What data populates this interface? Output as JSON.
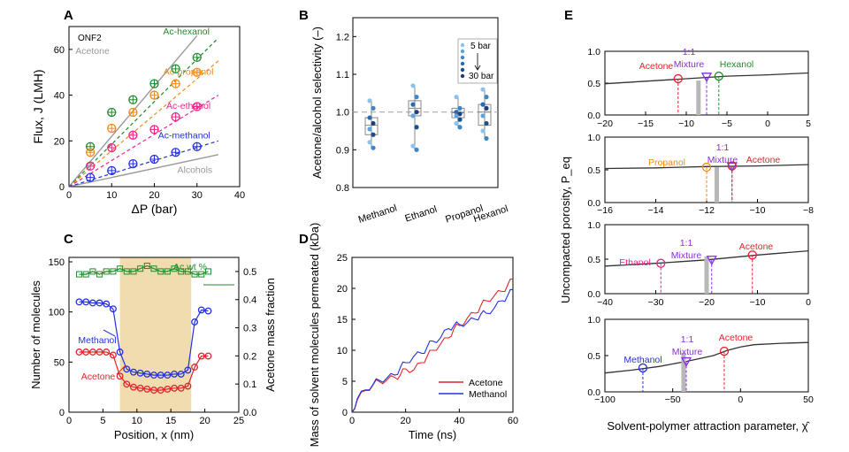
{
  "colors": {
    "acetone": "#e0242b",
    "methanol": "#2230e0",
    "ethanol": "#e8238c",
    "propanol": "#f08a1d",
    "hexanol": "#1f8a2a",
    "mixture": "#8a2be2",
    "gray": "#9a9a9a",
    "band": "#f1dcb0",
    "axis": "#000000",
    "light_blue": "#8cc3ea",
    "mid_blue": "#3f86c8",
    "dark_blue": "#1f3f7a"
  },
  "chart_data": [
    {
      "panel": "A",
      "type": "scatter",
      "xlabel": "ΔP (bar)",
      "ylabel": "Flux, J (LMH)",
      "xlim": [
        0,
        40
      ],
      "ylim": [
        0,
        70
      ],
      "xticks": [
        "0",
        "10",
        "20",
        "30",
        "40"
      ],
      "yticks": [
        "0",
        "20",
        "40",
        "60"
      ],
      "annotation": "ONF2",
      "lines": [
        {
          "name": "Acetone",
          "color_key": "gray",
          "x": [
            0,
            30
          ],
          "y": [
            0,
            66
          ]
        },
        {
          "name": "Alcohols",
          "color_key": "gray",
          "x": [
            0,
            35
          ],
          "y": [
            0,
            14
          ]
        }
      ],
      "series": [
        {
          "name": "Ac-hexanol",
          "color_key": "hexanol",
          "x": [
            5,
            10,
            15,
            20,
            25,
            30
          ],
          "y": [
            17.5,
            32.5,
            38,
            45,
            51.5,
            56.5
          ],
          "fit_end": [
            35,
            65
          ]
        },
        {
          "name": "Ac-propanol",
          "color_key": "propanol",
          "x": [
            5,
            10,
            15,
            20,
            25,
            30
          ],
          "y": [
            15,
            25.5,
            32.5,
            40,
            45,
            50
          ],
          "fit_end": [
            35,
            55
          ]
        },
        {
          "name": "Ac-ethanol",
          "color_key": "ethanol",
          "x": [
            5,
            10,
            15,
            20,
            25,
            30
          ],
          "y": [
            9,
            17,
            22.5,
            25,
            30.5,
            35
          ],
          "fit_end": [
            35,
            40
          ]
        },
        {
          "name": "Ac-methanol",
          "color_key": "methanol",
          "x": [
            5,
            10,
            15,
            20,
            25,
            30
          ],
          "y": [
            4,
            7,
            10,
            12,
            15,
            17.5
          ],
          "fit_end": [
            35,
            20
          ]
        }
      ]
    },
    {
      "panel": "B",
      "type": "box",
      "ylabel": "Acetone/alcohol selectivity (–)",
      "ylim": [
        0.8,
        1.25
      ],
      "yticks": [
        "0.8",
        "0.9",
        "1.0",
        "1.1",
        "1.2"
      ],
      "categories": [
        "Methanol",
        "Ethanol",
        "Propanol",
        "Hexanol"
      ],
      "reference": 1.0,
      "legend": {
        "top": "5 bar",
        "bottom": "30 bar"
      },
      "boxes": [
        {
          "q1": 0.94,
          "median": 0.965,
          "q3": 0.985,
          "min": 0.905,
          "max": 1.03,
          "points": [
            1.03,
            1.01,
            0.985,
            0.97,
            0.955,
            0.94,
            0.92,
            0.905
          ]
        },
        {
          "q1": 0.99,
          "median": 1.01,
          "q3": 1.03,
          "min": 0.9,
          "max": 1.07,
          "points": [
            1.07,
            1.04,
            1.02,
            1.0,
            0.99,
            0.96,
            0.91,
            0.9
          ]
        },
        {
          "q1": 0.985,
          "median": 0.998,
          "q3": 1.01,
          "min": 0.96,
          "max": 1.04,
          "points": [
            1.04,
            1.01,
            1.0,
            0.995,
            0.99,
            0.98,
            0.97,
            0.96
          ]
        },
        {
          "q1": 0.965,
          "median": 1.0,
          "q3": 1.02,
          "min": 0.93,
          "max": 1.06,
          "points": [
            1.06,
            1.04,
            1.02,
            1.01,
            0.99,
            0.97,
            0.95,
            0.93
          ]
        }
      ]
    },
    {
      "panel": "C",
      "type": "line",
      "xlabel": "Position, x (nm)",
      "ylabel_left": "Number of molecules",
      "ylabel_right": "Acetone mass fraction",
      "xlim": [
        0,
        25
      ],
      "ylim_left": [
        0,
        150
      ],
      "ylim_right": [
        0,
        0.55
      ],
      "xticks": [
        "0",
        "5",
        "10",
        "15",
        "20",
        "25"
      ],
      "yticks_left": [
        "0",
        "50",
        "100",
        "150"
      ],
      "yticks_right": [
        "0.0",
        "0.1",
        "0.2",
        "0.3",
        "0.4",
        "0.5"
      ],
      "band": [
        7.5,
        18
      ],
      "x": [
        1.5,
        2.5,
        3.5,
        4.5,
        5.5,
        6.5,
        7.5,
        8.5,
        9.5,
        10.5,
        11.5,
        12.5,
        13.5,
        14.5,
        15.5,
        16.5,
        17.5,
        18.5,
        19.5,
        20.5
      ],
      "series": [
        {
          "name": "Methanol",
          "color_key": "methanol",
          "axis": "left",
          "marker": "circle",
          "y": [
            110,
            110,
            109,
            109,
            108,
            103,
            60,
            43,
            40,
            39,
            38,
            37,
            37,
            37,
            38,
            38,
            42,
            90,
            102,
            101
          ]
        },
        {
          "name": "Acetone",
          "color_key": "acetone",
          "axis": "left",
          "marker": "circle",
          "y": [
            60,
            60,
            60,
            60,
            60,
            57,
            36,
            28,
            25,
            24,
            23,
            22,
            22,
            23,
            24,
            24,
            26,
            45,
            56,
            56
          ]
        },
        {
          "name": "Ac wt %",
          "color_key": "hexanol",
          "axis": "right",
          "marker": "square",
          "y": [
            0.49,
            0.49,
            0.5,
            0.49,
            0.5,
            0.5,
            0.51,
            0.5,
            0.5,
            0.51,
            0.52,
            0.51,
            0.5,
            0.5,
            0.51,
            0.5,
            0.5,
            0.49,
            0.49,
            0.5
          ]
        }
      ]
    },
    {
      "panel": "D",
      "type": "line",
      "xlabel": "Time (ns)",
      "ylabel": "Mass of solvent molecules permeated (kDa)",
      "xlim": [
        0,
        60
      ],
      "ylim": [
        0,
        25
      ],
      "xticks": [
        "0",
        "20",
        "40",
        "60"
      ],
      "yticks": [
        "0",
        "5",
        "10",
        "15",
        "20",
        "25"
      ],
      "series": [
        {
          "name": "Acetone",
          "color_key": "acetone",
          "x": [
            0,
            2,
            5,
            8,
            10,
            13,
            16,
            18,
            20,
            23,
            26,
            28,
            30,
            33,
            36,
            38,
            40,
            43,
            46,
            48,
            50,
            53,
            56,
            58,
            60
          ],
          "y": [
            0,
            2,
            3.5,
            4.5,
            5,
            5.2,
            5.6,
            6,
            7,
            6.8,
            8,
            9,
            10,
            11,
            12,
            13.5,
            14,
            15.2,
            16,
            17.2,
            18,
            18.8,
            19.5,
            20.5,
            21.5
          ]
        },
        {
          "name": "Methanol",
          "color_key": "methanol",
          "x": [
            0,
            2,
            5,
            8,
            10,
            13,
            16,
            18,
            20,
            23,
            26,
            28,
            30,
            33,
            36,
            38,
            40,
            43,
            46,
            48,
            50,
            53,
            56,
            58,
            60
          ],
          "y": [
            0,
            2.2,
            3.6,
            4.6,
            5.2,
            5.5,
            6,
            7.2,
            8,
            9,
            9.5,
            10.5,
            11.5,
            12,
            13.5,
            14,
            14.2,
            14.5,
            15,
            15.8,
            16,
            16.8,
            18,
            18.8,
            19.8
          ]
        }
      ]
    },
    {
      "panel": "E",
      "type": "line",
      "xlabel": "Solvent-polymer attraction parameter, χ̂",
      "ylabel": "Uncompacted porosity, P_eq",
      "mixture_label": "1:1 Mixture",
      "subplots": [
        {
          "xlim": [
            -20,
            5
          ],
          "xticks": [
            "−20",
            "−15",
            "−10",
            "−5",
            "0",
            "5"
          ],
          "tick_vals": [
            -20,
            -15,
            -10,
            -5,
            0,
            5
          ],
          "yticks": [
            "0.0",
            "0.5",
            "1.0"
          ],
          "curve": [
            [
              -20,
              0.49
            ],
            [
              -15,
              0.53
            ],
            [
              -10,
              0.57
            ],
            [
              -5,
              0.61
            ],
            [
              0,
              0.63
            ],
            [
              5,
              0.66
            ]
          ],
          "markers": [
            {
              "name": "Acetone",
              "color_key": "acetone",
              "x": -11,
              "y": 0.57,
              "shape": "circle"
            },
            {
              "name": "Mixture",
              "color_key": "mixture",
              "x": -7.5,
              "y": 0.6,
              "shape": "triangle"
            },
            {
              "name": "Hexanol",
              "color_key": "hexanol",
              "x": -6,
              "y": 0.61,
              "shape": "circle"
            }
          ],
          "bar_x": -8.5
        },
        {
          "xlim": [
            -16,
            -8
          ],
          "xticks": [
            "−16",
            "−14",
            "−12",
            "−10",
            "−8"
          ],
          "tick_vals": [
            -16,
            -14,
            -12,
            -10,
            -8
          ],
          "yticks": [
            "0.0",
            "0.5",
            "1.0"
          ],
          "curve": [
            [
              -16,
              0.52
            ],
            [
              -14,
              0.53
            ],
            [
              -12,
              0.55
            ],
            [
              -10,
              0.56
            ],
            [
              -8,
              0.58
            ]
          ],
          "markers": [
            {
              "name": "Propanol",
              "color_key": "propanol",
              "x": -12,
              "y": 0.54,
              "shape": "circle"
            },
            {
              "name": "Mixture",
              "color_key": "mixture",
              "x": -11,
              "y": 0.55,
              "shape": "triangle"
            },
            {
              "name": "Acetone",
              "color_key": "acetone",
              "x": -11,
              "y": 0.56,
              "shape": "circle"
            }
          ],
          "bar_x": -11.6
        },
        {
          "xlim": [
            -40,
            0
          ],
          "xticks": [
            "−40",
            "−30",
            "−20",
            "−10",
            "0"
          ],
          "tick_vals": [
            -40,
            -30,
            -20,
            -10,
            0
          ],
          "yticks": [
            "0.0",
            "0.5",
            "1.0"
          ],
          "curve": [
            [
              -40,
              0.4
            ],
            [
              -30,
              0.44
            ],
            [
              -20,
              0.49
            ],
            [
              -10,
              0.56
            ],
            [
              0,
              0.62
            ]
          ],
          "markers": [
            {
              "name": "Ethanol",
              "color_key": "ethanol",
              "x": -29,
              "y": 0.44,
              "shape": "circle"
            },
            {
              "name": "Mixture",
              "color_key": "mixture",
              "x": -19,
              "y": 0.49,
              "shape": "triangle"
            },
            {
              "name": "Acetone",
              "color_key": "acetone",
              "x": -11,
              "y": 0.56,
              "shape": "circle"
            }
          ],
          "bar_x": -20
        },
        {
          "xlim": [
            -100,
            50
          ],
          "xticks": [
            "−100",
            "−50",
            "0",
            "50"
          ],
          "tick_vals": [
            -100,
            -50,
            0,
            50
          ],
          "yticks": [
            "0.0",
            "0.5",
            "1.0"
          ],
          "curve": [
            [
              -100,
              0.26
            ],
            [
              -80,
              0.3
            ],
            [
              -60,
              0.35
            ],
            [
              -40,
              0.42
            ],
            [
              -20,
              0.5
            ],
            [
              -10,
              0.57
            ],
            [
              0,
              0.62
            ],
            [
              10,
              0.65
            ],
            [
              30,
              0.67
            ],
            [
              50,
              0.68
            ]
          ],
          "markers": [
            {
              "name": "Methanol",
              "color_key": "methanol",
              "x": -72,
              "y": 0.33,
              "shape": "circle"
            },
            {
              "name": "Mixture",
              "color_key": "mixture",
              "x": -40,
              "y": 0.42,
              "shape": "triangle"
            },
            {
              "name": "Acetone",
              "color_key": "acetone",
              "x": -12,
              "y": 0.56,
              "shape": "circle"
            }
          ],
          "bar_x": -42
        }
      ]
    }
  ],
  "panel_letters": [
    "A",
    "B",
    "C",
    "D",
    "E"
  ]
}
